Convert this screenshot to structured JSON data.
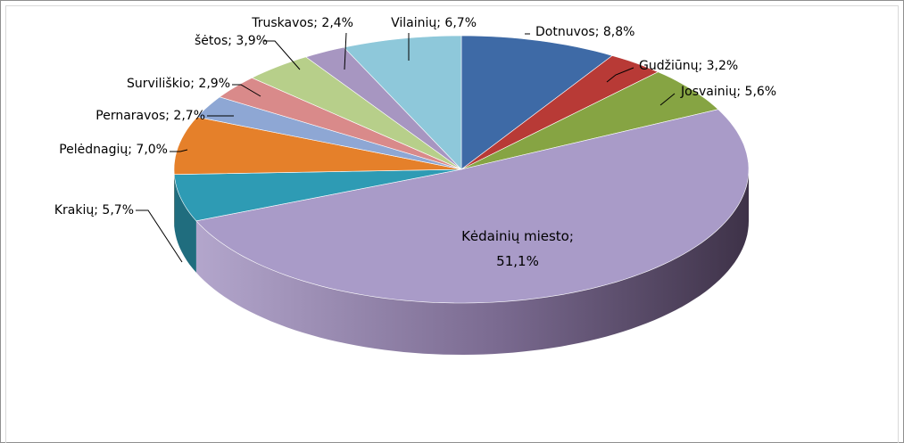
{
  "chart_data": {
    "type": "pie",
    "style": "3d-exploded-none",
    "title": "",
    "slices": [
      {
        "label": "Dotnuvos",
        "value": 8.8,
        "text": "Dotnuvos; 8,8%",
        "color": "#3e6aa6"
      },
      {
        "label": "Gudžiūnų",
        "value": 3.2,
        "text": "Gudžiūnų; 3,2%",
        "color": "#b83a36"
      },
      {
        "label": "Josvainių",
        "value": 5.6,
        "text": "Josvainių; 5,6%",
        "color": "#86a443"
      },
      {
        "label": "Kėdainių miesto",
        "value": 51.1,
        "text_line1": "Kėdainių miesto;",
        "text_line2": "51,1%",
        "color": "#a99bc8"
      },
      {
        "label": "Krakių",
        "value": 5.7,
        "text": "Krakių; 5,7%",
        "color": "#2e9bb4"
      },
      {
        "label": "Pelėdnagių",
        "value": 7.0,
        "text": "Pelėdnagių; 7,0%",
        "color": "#e5802a"
      },
      {
        "label": "Pernaravos",
        "value": 2.7,
        "text": "Pernaravos; 2,7%",
        "color": "#8ea7d4"
      },
      {
        "label": "Surviliškio",
        "value": 2.9,
        "text": "Surviliškio; 2,9%",
        "color": "#d98a8a"
      },
      {
        "label": "šėtos",
        "value": 3.9,
        "text": "šėtos; 3,9%",
        "color": "#b7cf8a"
      },
      {
        "label": "Truskavos",
        "value": 2.4,
        "text": "Truskavos; 2,4%",
        "color": "#a796c1"
      },
      {
        "label": "Vilainių",
        "value": 6.7,
        "text": "Vilainių; 6,7%",
        "color": "#8ec8da"
      }
    ]
  }
}
